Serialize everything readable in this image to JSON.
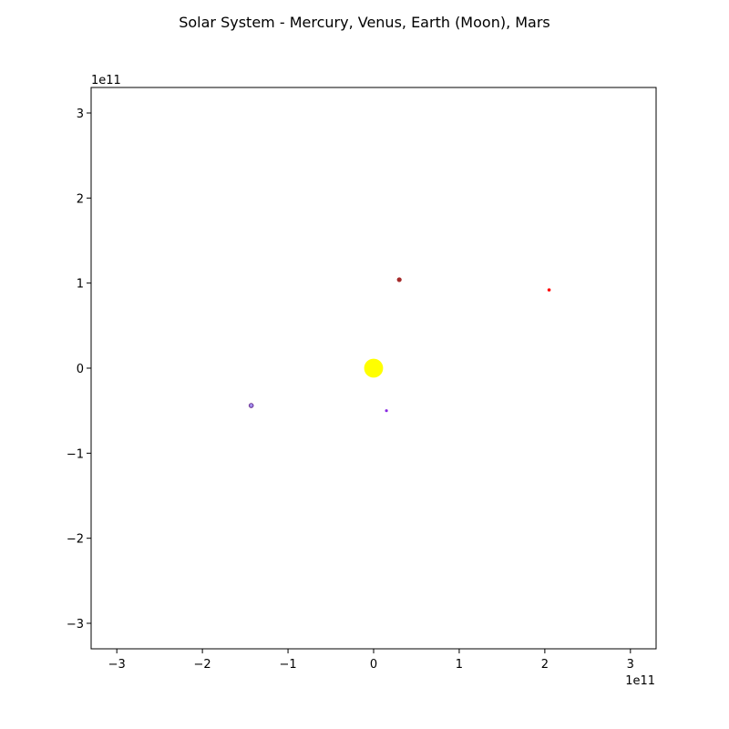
{
  "chart_data": {
    "type": "scatter",
    "title": "Solar System - Mercury, Venus, Earth (Moon), Mars",
    "xlabel": "",
    "ylabel": "",
    "x_offset_label": "1e11",
    "y_offset_label": "1e11",
    "xlim": [
      -3.3,
      3.3
    ],
    "ylim": [
      -3.3,
      3.3
    ],
    "xticks": [
      -3,
      -2,
      -1,
      0,
      1,
      2,
      3
    ],
    "yticks": [
      -3,
      -2,
      -1,
      0,
      1,
      2,
      3
    ],
    "xtick_labels": [
      "−3",
      "−2",
      "−1",
      "0",
      "1",
      "2",
      "3"
    ],
    "ytick_labels": [
      "−3",
      "−2",
      "−1",
      "0",
      "1",
      "2",
      "3"
    ],
    "grid": false,
    "points": [
      {
        "x": 0.0,
        "y": 0.0,
        "color": "#ffff00",
        "edge": "#ffff00",
        "size": 10
      },
      {
        "x": 0.15,
        "y": -0.5,
        "color": "#8a2be2",
        "edge": "#8a2be2",
        "size": 1.2
      },
      {
        "x": 0.3,
        "y": 1.04,
        "color": "#a52a2a",
        "edge": "#a52a2a",
        "size": 2.2
      },
      {
        "x": -1.43,
        "y": -0.44,
        "color": "#8a6fd1",
        "edge": "#6a2b8a",
        "size": 2.4
      },
      {
        "x": -1.43,
        "y": -0.435,
        "color": "#b0a0ff",
        "edge": "#b0a0ff",
        "size": 0.8
      },
      {
        "x": 2.05,
        "y": 0.92,
        "color": "#ff0000",
        "edge": "#ff0000",
        "size": 1.4
      }
    ]
  }
}
